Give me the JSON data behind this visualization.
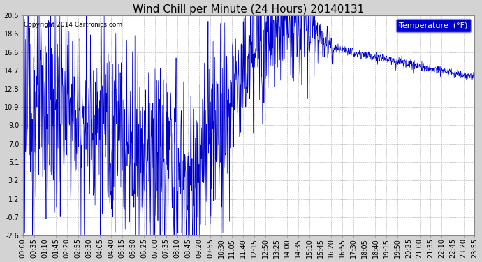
{
  "title": "Wind Chill per Minute (24 Hours) 20140131",
  "copyright_text": "Copyright 2014 Cartronics.com",
  "legend_label": "Temperature  (°F)",
  "line_color": "#0000cc",
  "background_color": "#d3d3d3",
  "plot_background": "#ffffff",
  "grid_color": "#999999",
  "yticks": [
    20.5,
    18.6,
    16.6,
    14.7,
    12.8,
    10.9,
    9.0,
    7.0,
    5.1,
    3.2,
    1.2,
    -0.7,
    -2.6
  ],
  "ylim": [
    -2.6,
    20.5
  ],
  "xtick_labels": [
    "00:00",
    "00:35",
    "01:10",
    "01:45",
    "02:20",
    "02:55",
    "03:30",
    "04:05",
    "04:40",
    "05:15",
    "05:50",
    "06:25",
    "07:00",
    "07:35",
    "08:10",
    "08:45",
    "09:20",
    "09:55",
    "10:30",
    "11:05",
    "11:40",
    "12:15",
    "12:50",
    "13:25",
    "14:00",
    "14:35",
    "15:10",
    "15:45",
    "16:20",
    "16:55",
    "17:30",
    "18:05",
    "18:40",
    "19:15",
    "19:50",
    "20:25",
    "21:00",
    "21:35",
    "22:10",
    "22:45",
    "23:20",
    "23:55"
  ],
  "title_fontsize": 11,
  "tick_fontsize": 7,
  "legend_fontsize": 8,
  "figwidth": 6.9,
  "figheight": 3.75,
  "dpi": 100
}
